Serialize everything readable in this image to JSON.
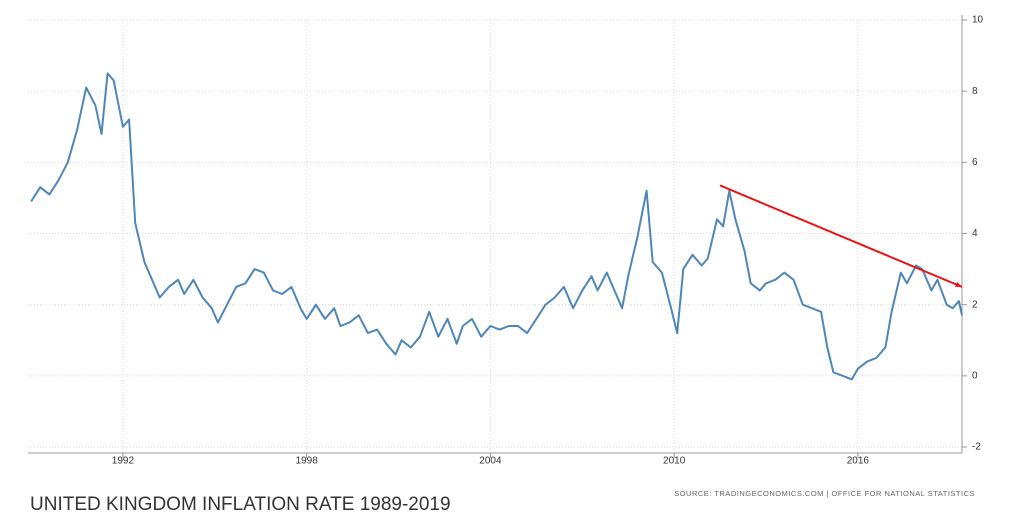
{
  "chart_data": {
    "type": "line",
    "title": "UNITED KINGDOM INFLATION RATE 1989-2019",
    "source": "SOURCE: TRADINGECONOMICS.COM | OFFICE FOR NATIONAL STATISTICS",
    "x": [
      1989.0,
      1989.3,
      1989.6,
      1989.9,
      1990.2,
      1990.5,
      1990.8,
      1991.1,
      1991.3,
      1991.5,
      1991.7,
      1992.0,
      1992.2,
      1992.4,
      1992.7,
      1993.0,
      1993.2,
      1993.5,
      1993.8,
      1994.0,
      1994.3,
      1994.6,
      1994.9,
      1995.1,
      1995.4,
      1995.7,
      1996.0,
      1996.3,
      1996.6,
      1996.9,
      1997.2,
      1997.5,
      1997.8,
      1998.0,
      1998.3,
      1998.6,
      1998.9,
      1999.1,
      1999.4,
      1999.7,
      2000.0,
      2000.3,
      2000.6,
      2000.9,
      2001.1,
      2001.4,
      2001.7,
      2002.0,
      2002.3,
      2002.6,
      2002.9,
      2003.1,
      2003.4,
      2003.7,
      2004.0,
      2004.3,
      2004.6,
      2004.9,
      2005.2,
      2005.5,
      2005.8,
      2006.1,
      2006.4,
      2006.7,
      2007.0,
      2007.3,
      2007.5,
      2007.8,
      2008.0,
      2008.3,
      2008.5,
      2008.8,
      2009.1,
      2009.3,
      2009.6,
      2009.9,
      2010.1,
      2010.3,
      2010.6,
      2010.9,
      2011.1,
      2011.4,
      2011.6,
      2011.8,
      2012.0,
      2012.3,
      2012.5,
      2012.8,
      2013.0,
      2013.3,
      2013.6,
      2013.9,
      2014.2,
      2014.5,
      2014.8,
      2015.0,
      2015.2,
      2015.5,
      2015.8,
      2016.0,
      2016.3,
      2016.6,
      2016.9,
      2017.1,
      2017.4,
      2017.6,
      2017.9,
      2018.1,
      2018.4,
      2018.6,
      2018.9,
      2019.1,
      2019.3,
      2019.4
    ],
    "series": [
      {
        "name": "Inflation Rate",
        "color": "#4f86b8",
        "values": [
          4.9,
          5.3,
          5.1,
          5.5,
          6.0,
          6.9,
          8.1,
          7.6,
          6.8,
          8.5,
          8.3,
          7.0,
          7.2,
          4.3,
          3.2,
          2.6,
          2.2,
          2.5,
          2.7,
          2.3,
          2.7,
          2.2,
          1.9,
          1.5,
          2.0,
          2.5,
          2.6,
          3.0,
          2.9,
          2.4,
          2.3,
          2.5,
          1.9,
          1.6,
          2.0,
          1.6,
          1.9,
          1.4,
          1.5,
          1.7,
          1.2,
          1.3,
          0.9,
          0.6,
          1.0,
          0.8,
          1.1,
          1.8,
          1.1,
          1.6,
          0.9,
          1.4,
          1.6,
          1.1,
          1.4,
          1.3,
          1.4,
          1.4,
          1.2,
          1.6,
          2.0,
          2.2,
          2.5,
          1.9,
          2.4,
          2.8,
          2.4,
          2.9,
          2.5,
          1.9,
          2.8,
          3.9,
          5.2,
          3.2,
          2.9,
          1.9,
          1.2,
          3.0,
          3.4,
          3.1,
          3.3,
          4.4,
          4.2,
          5.2,
          4.4,
          3.5,
          2.6,
          2.4,
          2.6,
          2.7,
          2.9,
          2.7,
          2.0,
          1.9,
          1.8,
          0.8,
          0.1,
          0.0,
          -0.1,
          0.2,
          0.4,
          0.5,
          0.8,
          1.8,
          2.9,
          2.6,
          3.1,
          3.0,
          2.4,
          2.7,
          2.0,
          1.9,
          2.1,
          1.7
        ]
      }
    ],
    "trend_line": {
      "x": [
        2011.5,
        2019.4
      ],
      "y": [
        5.35,
        2.5
      ],
      "color": "#ee1111"
    },
    "xlim": [
      1988.9,
      2019.4
    ],
    "xticks": [
      1992,
      1998,
      2004,
      2010,
      2016
    ],
    "ylim": [
      -2,
      10
    ],
    "yticks": [
      -2,
      0,
      2,
      4,
      6,
      8,
      10
    ],
    "grid": true
  }
}
